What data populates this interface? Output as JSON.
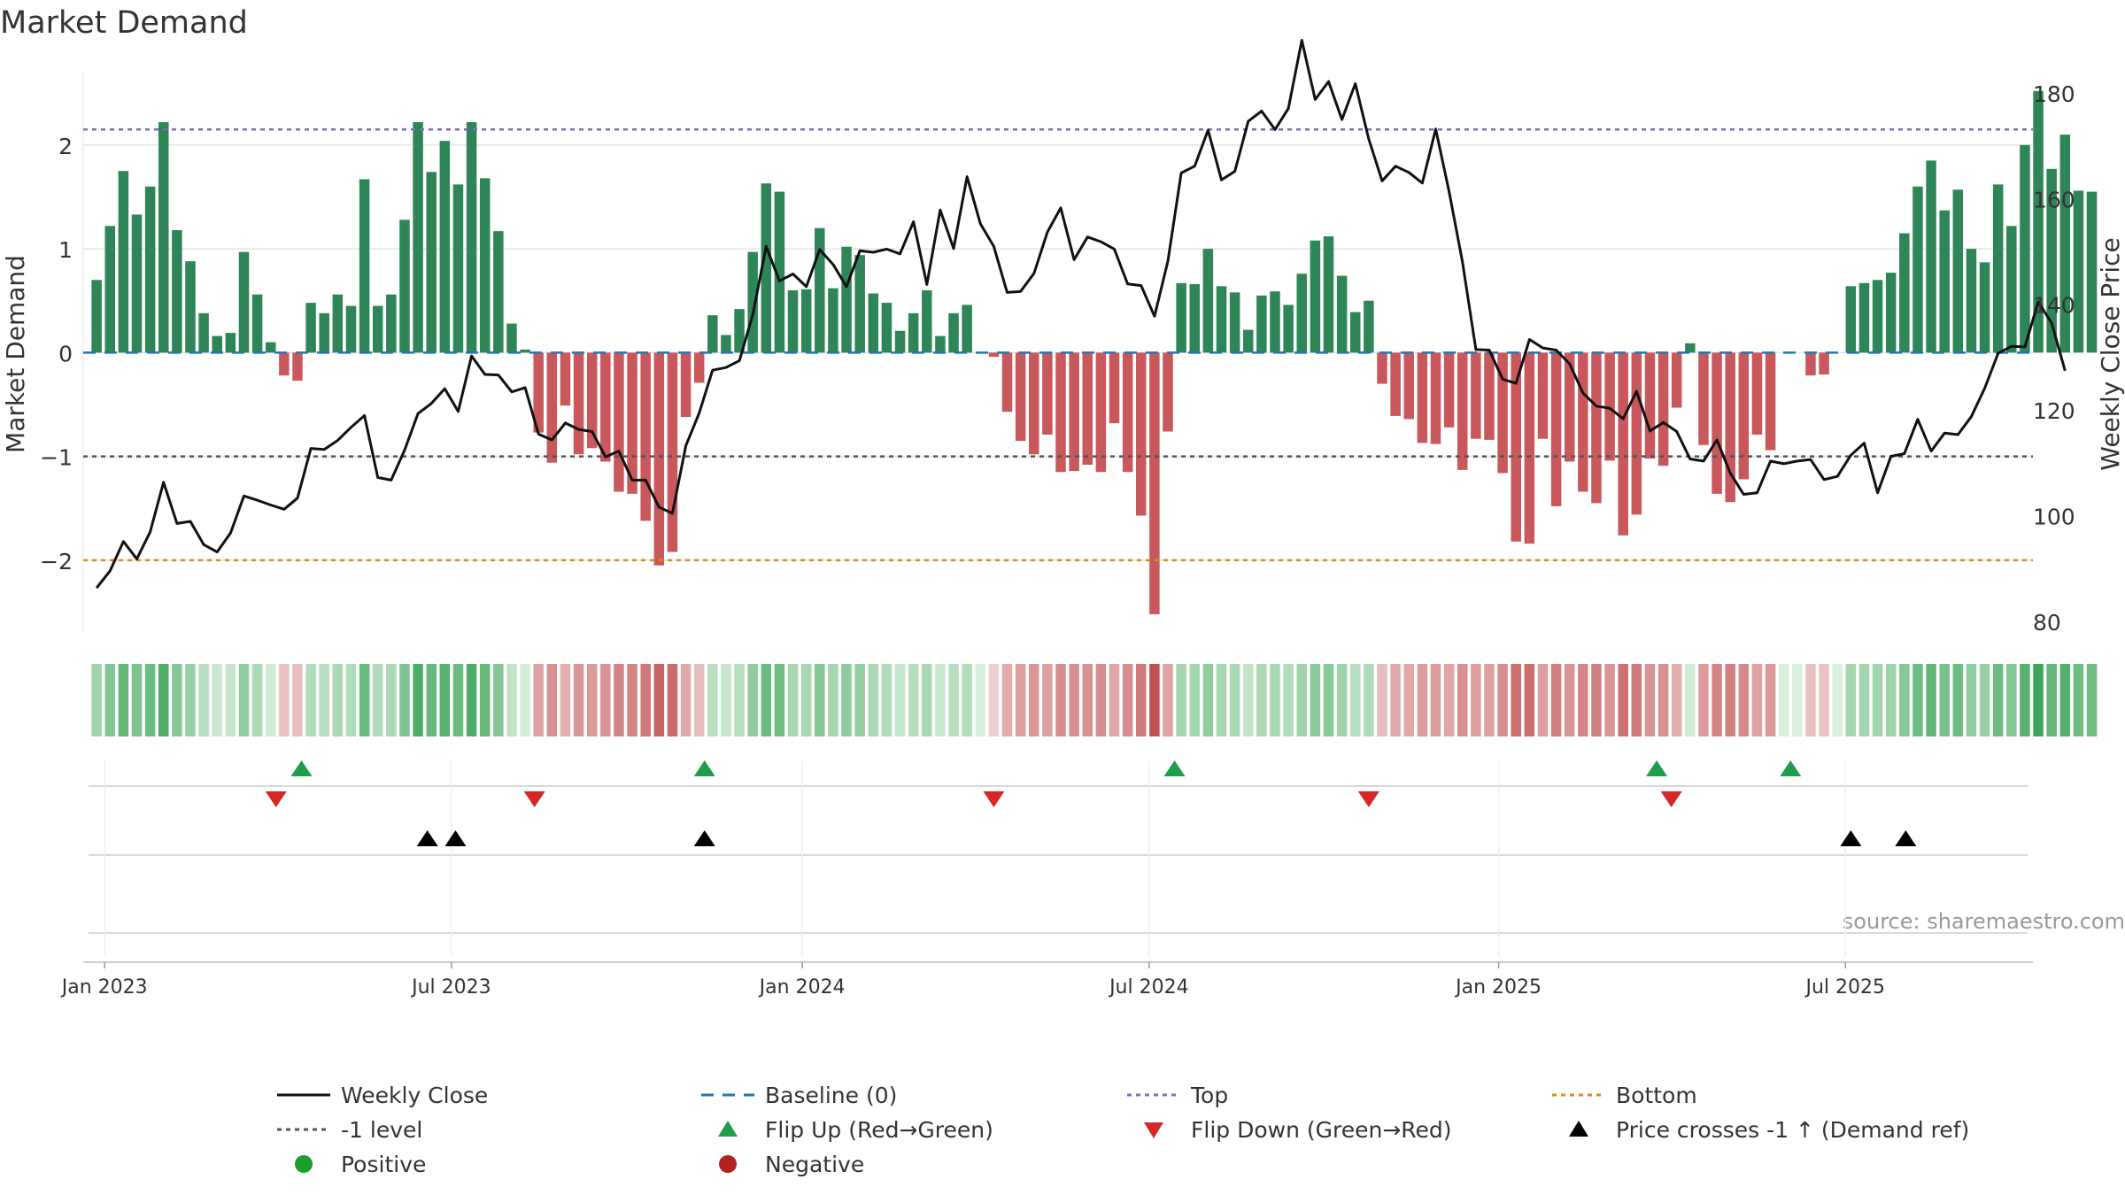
{
  "title": "Market Demand",
  "source": "source: sharemaestro.com",
  "colors": {
    "bar_pos": "#2e8557",
    "bar_neg": "#c9585c",
    "line": "#111111",
    "baseline": "#1f77b4",
    "top": "#7a6fb8",
    "minus1": "#555555",
    "bottom": "#e08a1a",
    "flip_up": "#1e9e4a",
    "flip_down": "#d62728",
    "cross": "#000000",
    "pos_dot": "#1e9e2e",
    "neg_dot": "#b22222",
    "grid": "#e5e5e5",
    "axis_text": "#333333"
  },
  "legend": [
    {
      "label": "Weekly Close",
      "kind": "line-solid",
      "color_key": "line"
    },
    {
      "label": "Baseline (0)",
      "kind": "line-dash",
      "color_key": "baseline"
    },
    {
      "label": "Top",
      "kind": "line-dot",
      "color_key": "top"
    },
    {
      "label": "Bottom",
      "kind": "line-dot",
      "color_key": "bottom"
    },
    {
      "label": "-1 level",
      "kind": "line-dot",
      "color_key": "minus1"
    },
    {
      "label": "Flip Up (Red→Green)",
      "kind": "tri-up",
      "color_key": "flip_up"
    },
    {
      "label": "Flip Down (Green→Red)",
      "kind": "tri-down",
      "color_key": "flip_down"
    },
    {
      "label": "Price crosses -1 ↑ (Demand ref)",
      "kind": "tri-up",
      "color_key": "cross"
    },
    {
      "label": "Positive",
      "kind": "dot",
      "color_key": "pos_dot"
    },
    {
      "label": "Negative",
      "kind": "dot",
      "color_key": "neg_dot"
    }
  ],
  "chart_data": {
    "type": "bar",
    "title": "Market Demand",
    "ylabel": "Market Demand",
    "y2label": "Weekly Close Price",
    "ylim": [
      -2.7,
      2.8
    ],
    "y2lim": [
      78,
      186
    ],
    "yticks": [
      -2,
      -1,
      0,
      1,
      2
    ],
    "yticklabels": [
      "−2",
      "−1",
      "0",
      "1",
      "2"
    ],
    "y2ticks": [
      80,
      100,
      120,
      140,
      160,
      180
    ],
    "y2ticklabels": [
      "80",
      "100",
      "120",
      "140",
      "160",
      "180"
    ],
    "x_week_range": [
      -1,
      144.6
    ],
    "xticks": [
      {
        "label": "Jan 2023",
        "week": 0.6
      },
      {
        "label": "Jul 2023",
        "week": 26.5
      },
      {
        "label": "Jan 2024",
        "week": 52.7
      },
      {
        "label": "Jul 2024",
        "week": 78.6
      },
      {
        "label": "Jan 2025",
        "week": 104.7
      },
      {
        "label": "Jul 2025",
        "week": 130.6
      }
    ],
    "levels": {
      "top": 2.15,
      "minus1": -1.0,
      "bottom": -2.0,
      "baseline": 0
    },
    "series": [
      {
        "name": "Market Demand",
        "values": [
          0.7,
          1.22,
          1.75,
          1.33,
          1.6,
          2.22,
          1.18,
          0.88,
          0.38,
          0.16,
          0.19,
          0.97,
          0.56,
          0.1,
          -0.22,
          -0.27,
          0.48,
          0.38,
          0.56,
          0.45,
          1.67,
          0.45,
          0.56,
          1.28,
          2.22,
          1.74,
          2.04,
          1.62,
          2.22,
          1.68,
          1.17,
          0.28,
          0.03,
          -0.77,
          -1.06,
          -0.51,
          -0.98,
          -0.92,
          -1.05,
          -1.34,
          -1.36,
          -1.62,
          -2.05,
          -1.92,
          -0.62,
          -0.29,
          0.36,
          0.17,
          0.42,
          0.97,
          1.63,
          1.55,
          0.6,
          0.61,
          1.2,
          0.62,
          1.02,
          0.94,
          0.57,
          0.48,
          0.21,
          0.38,
          0.6,
          0.16,
          0.38,
          0.46,
          0,
          -0.04,
          -0.57,
          -0.85,
          -0.98,
          -0.79,
          -1.15,
          -1.14,
          -1.08,
          -1.15,
          -0.68,
          -1.15,
          -1.57,
          -2.52,
          -0.76,
          0.67,
          0.66,
          1.0,
          0.64,
          0.58,
          0.22,
          0.55,
          0.59,
          0.46,
          0.76,
          1.08,
          1.12,
          0.74,
          0.39,
          0.5,
          -0.3,
          -0.61,
          -0.64,
          -0.87,
          -0.88,
          -0.72,
          -1.13,
          -0.83,
          -0.84,
          -1.16,
          -1.82,
          -1.84,
          -0.83,
          -1.48,
          -1.05,
          -1.34,
          -1.45,
          -1.04,
          -1.76,
          -1.56,
          -1.02,
          -1.09,
          -0.53,
          0.09,
          -0.89,
          -1.36,
          -1.44,
          -1.22,
          -0.79,
          -0.94,
          0,
          0,
          -0.22,
          -0.21,
          0,
          0.64,
          0.67,
          0.7,
          0.77,
          1.15,
          1.6,
          1.85,
          1.37,
          1.57,
          1.0,
          0.87,
          1.62,
          1.22,
          2.0,
          2.52,
          1.77,
          2.1,
          1.56,
          1.55
        ]
      },
      {
        "name": "Weekly Close",
        "values": [
          86.5,
          89.7,
          95.3,
          92.0,
          97.1,
          106.5,
          98.7,
          99.1,
          94.7,
          93.3,
          96.9,
          103.9,
          103.1,
          102.2,
          101.4,
          103.5,
          112.9,
          112.7,
          114.4,
          116.9,
          119.1,
          107.4,
          106.9,
          112.6,
          119.5,
          121.4,
          124.2,
          119.9,
          130.4,
          126.9,
          126.8,
          123.6,
          124.4,
          115.6,
          114.5,
          117.7,
          116.5,
          116.1,
          111.3,
          112.4,
          106.9,
          106.9,
          101.8,
          100.6,
          113.4,
          119.6,
          127.7,
          128.2,
          129.5,
          138.2,
          151.1,
          144.6,
          145.9,
          143.5,
          150.5,
          147.7,
          143.5,
          150.3,
          150.0,
          150.6,
          149.7,
          155.8,
          143.9,
          158.0,
          150.7,
          164.3,
          155.4,
          151.1,
          142.4,
          142.6,
          146.0,
          153.8,
          158.4,
          148.6,
          152.9,
          152.0,
          150.6,
          144.0,
          143.7,
          137.9,
          148.3,
          165.0,
          166.3,
          173.1,
          163.7,
          165.3,
          174.8,
          176.7,
          173.2,
          177.2,
          190.1,
          178.9,
          182.3,
          175.1,
          181.9,
          171.4,
          163.5,
          166.3,
          165.1,
          163.1,
          173.3,
          161.5,
          148.2,
          131.6,
          131.5,
          126.0,
          125.2,
          133.5,
          131.9,
          131.5,
          128.9,
          123.4,
          120.9,
          120.5,
          118.5,
          123.7,
          116.2,
          117.8,
          116.1,
          110.9,
          110.5,
          114.5,
          108.2,
          104.2,
          104.5,
          110.5,
          110.0,
          110.5,
          110.8,
          107.0,
          107.6,
          111.6,
          113.9,
          104.5,
          111.4,
          111.9,
          118.4,
          112.4,
          115.8,
          115.5,
          118.9,
          124.3,
          130.9,
          132.2,
          132.1,
          140.6,
          136.6,
          127.6
        ]
      }
    ],
    "flip_up_weeks": [
      15.3,
      45.4,
      80.5,
      116.5,
      126.5
    ],
    "flip_down_weeks": [
      13.4,
      32.7,
      67.0,
      95.0,
      117.6
    ],
    "cross_up_weeks": [
      24.7,
      26.8,
      45.4,
      131.0,
      135.1
    ],
    "heat_strip": "cell colour follows each week's Market Demand value (green shades positive, red shades negative)"
  }
}
